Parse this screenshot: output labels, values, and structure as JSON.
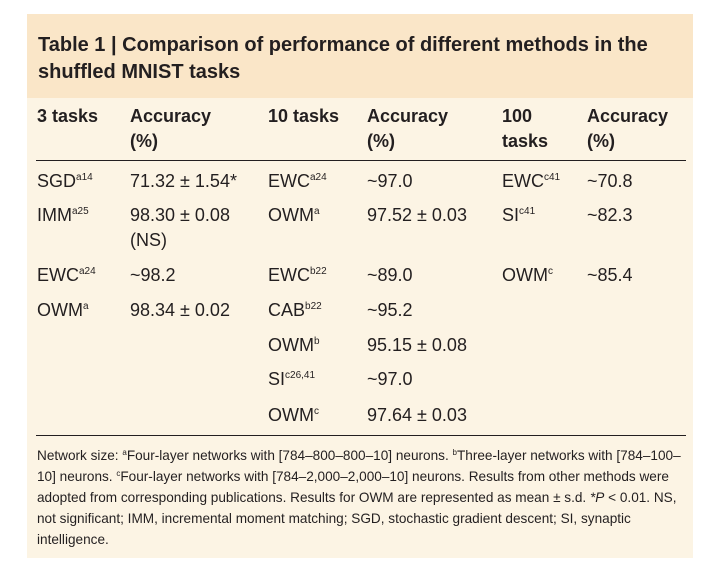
{
  "title": "Table 1 | Comparison of performance of different methods in the shuffled MNIST tasks",
  "headers": {
    "c1": "3 tasks",
    "c2a": "Accuracy",
    "c2b": "(%)",
    "c3": "10 tasks",
    "c4a": "Accuracy",
    "c4b": "(%)",
    "c5a": "100",
    "c5b": "tasks",
    "c6a": "Accuracy",
    "c6b": "(%)"
  },
  "three_tasks": [
    {
      "method": "SGD",
      "sup": "a14",
      "value": "71.32 ± 1.54*"
    },
    {
      "method": "IMM",
      "sup": "a25",
      "value": "98.30 ± 0.08",
      "value2": "(NS)"
    },
    {
      "method": "EWC",
      "sup": "a24",
      "value": "~98.2"
    },
    {
      "method": "OWM",
      "sup": "a",
      "value": "98.34 ± 0.02"
    }
  ],
  "ten_tasks": [
    {
      "method": "EWC",
      "sup": "a24",
      "value": "~97.0"
    },
    {
      "method": "OWM",
      "sup": "a",
      "value": "97.52 ± 0.03"
    },
    {
      "method": "EWC",
      "sup": "b22",
      "value": "~89.0"
    },
    {
      "method": "CAB",
      "sup": "b22",
      "value": "~95.2"
    },
    {
      "method": "OWM",
      "sup": "b",
      "value": "95.15 ± 0.08"
    },
    {
      "method": "SI",
      "sup": "c26,41",
      "value": "~97.0"
    },
    {
      "method": "OWM",
      "sup": "c",
      "value": "97.64 ± 0.03"
    }
  ],
  "hundred_tasks": [
    {
      "method": "EWC",
      "sup": "c41",
      "value": "~70.8"
    },
    {
      "method": "SI",
      "sup": "c41",
      "value": "~82.3"
    },
    {
      "method": "OWM",
      "sup": "c",
      "value": "~85.4"
    }
  ],
  "footnote": {
    "p1": "Network size: ",
    "s_a": "a",
    "p2": "Four-layer networks with [784–800–800–10] neurons. ",
    "s_b": "b",
    "p3": "Three-layer networks with [784–100–10] neurons. ",
    "s_c": "c",
    "p4": "Four-layer networks with [784–2,000–2,000–10] neurons. Results from other methods were adopted from corresponding publications. Results for OWM are represented as mean ± s.d. ",
    "p5": "*P",
    "p6": " < 0.01. NS, not significant; IMM, incremental moment matching; SGD, stochastic gradient descent; SI, synaptic intelligence."
  }
}
